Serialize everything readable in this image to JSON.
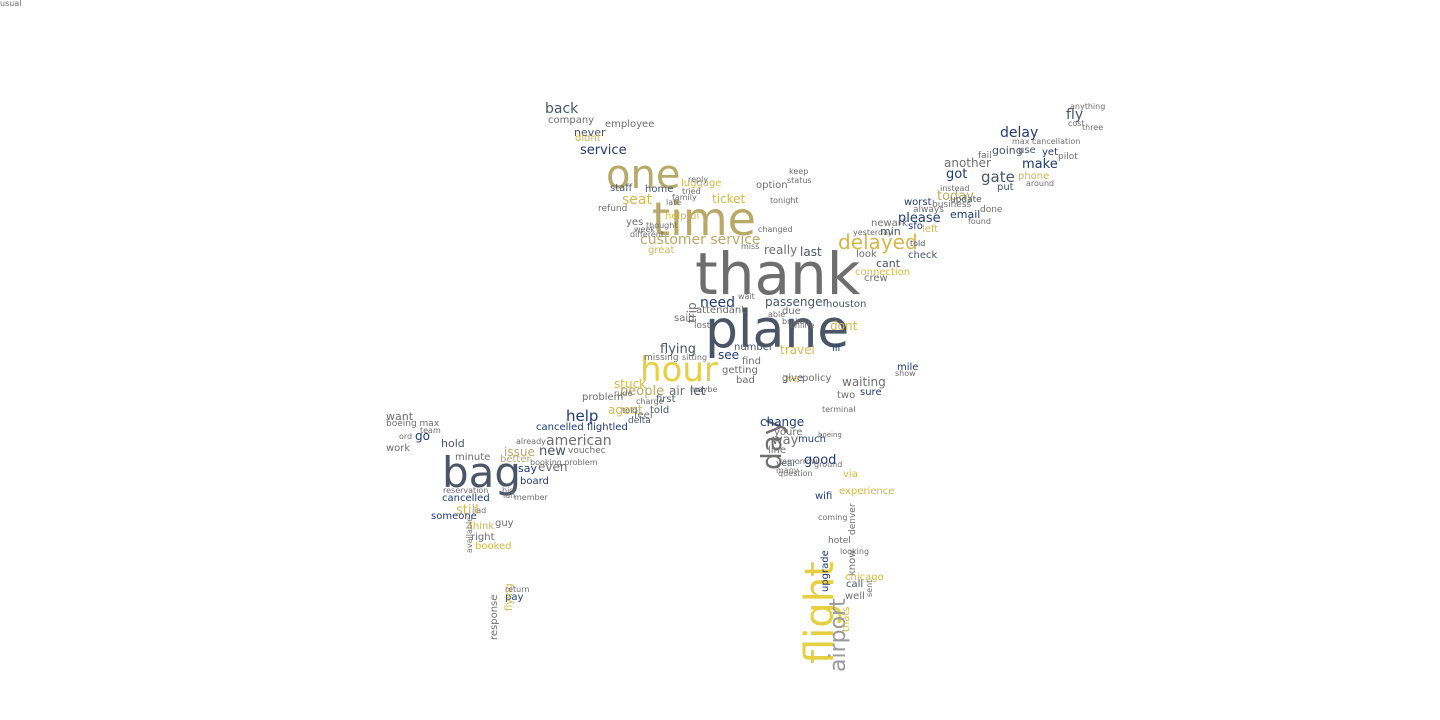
{
  "colors": {
    "navy": "#1f3a78",
    "slate": "#4a5568",
    "gray": "#6e6e6e",
    "lightgray": "#9a9a9a",
    "gold": "#d4b84a",
    "khaki": "#b8a968",
    "yellow": "#e6cf40"
  },
  "words": [
    {
      "text": "thank",
      "color": "gray",
      "vertical": false
    },
    {
      "text": "plane",
      "color": "slate",
      "vertical": false
    },
    {
      "text": "time",
      "color": "khaki",
      "vertical": false
    },
    {
      "text": "one",
      "color": "khaki",
      "vertical": false
    },
    {
      "text": "hour",
      "color": "yellow",
      "vertical": false
    },
    {
      "text": "bag",
      "color": "slate",
      "vertical": false
    },
    {
      "text": "flight",
      "color": "yellow",
      "vertical": true
    },
    {
      "text": "day",
      "color": "gray",
      "vertical": true
    },
    {
      "text": "airport",
      "color": "lightgray",
      "vertical": true
    },
    {
      "text": "delayed",
      "color": "gold",
      "vertical": false
    },
    {
      "text": "customer service",
      "color": "khaki",
      "vertical": false
    },
    {
      "text": "seat",
      "color": "gold",
      "vertical": false
    },
    {
      "text": "ticket",
      "color": "gold",
      "vertical": false
    },
    {
      "text": "service",
      "color": "navy",
      "vertical": false
    },
    {
      "text": "never",
      "color": "slate",
      "vertical": false
    },
    {
      "text": "back",
      "color": "slate",
      "vertical": false
    },
    {
      "text": "delay",
      "color": "navy",
      "vertical": false
    },
    {
      "text": "fly",
      "color": "slate",
      "vertical": false
    },
    {
      "text": "make",
      "color": "navy",
      "vertical": false
    },
    {
      "text": "gate",
      "color": "slate",
      "vertical": false
    },
    {
      "text": "got",
      "color": "navy",
      "vertical": false
    },
    {
      "text": "today",
      "color": "khaki",
      "vertical": false
    },
    {
      "text": "please",
      "color": "navy",
      "vertical": false
    },
    {
      "text": "min",
      "color": "slate",
      "vertical": false
    },
    {
      "text": "really",
      "color": "gray",
      "vertical": false
    },
    {
      "text": "last",
      "color": "slate",
      "vertical": false
    },
    {
      "text": "cant",
      "color": "slate",
      "vertical": false
    },
    {
      "text": "another",
      "color": "gray",
      "vertical": false
    },
    {
      "text": "going",
      "color": "slate",
      "vertical": false
    },
    {
      "text": "need",
      "color": "navy",
      "vertical": false
    },
    {
      "text": "passenger",
      "color": "slate",
      "vertical": false
    },
    {
      "text": "dont",
      "color": "gold",
      "vertical": false
    },
    {
      "text": "flying",
      "color": "slate",
      "vertical": false
    },
    {
      "text": "see",
      "color": "navy",
      "vertical": false
    },
    {
      "text": "people",
      "color": "khaki",
      "vertical": false
    },
    {
      "text": "help",
      "color": "navy",
      "vertical": false
    },
    {
      "text": "agent",
      "color": "gold",
      "vertical": false
    },
    {
      "text": "told",
      "color": "slate",
      "vertical": false
    },
    {
      "text": "cancelled flightled",
      "color": "navy",
      "vertical": false
    },
    {
      "text": "american",
      "color": "gray",
      "vertical": false
    },
    {
      "text": "new",
      "color": "slate",
      "vertical": false
    },
    {
      "text": "issue",
      "color": "khaki",
      "vertical": false
    },
    {
      "text": "even",
      "color": "gray",
      "vertical": false
    },
    {
      "text": "say",
      "color": "navy",
      "vertical": false
    },
    {
      "text": "still",
      "color": "gold",
      "vertical": false
    },
    {
      "text": "board",
      "color": "navy",
      "vertical": false
    },
    {
      "text": "want",
      "color": "gray",
      "vertical": false
    },
    {
      "text": "go",
      "color": "navy",
      "vertical": false
    },
    {
      "text": "hold",
      "color": "slate",
      "vertical": false
    },
    {
      "text": "work",
      "color": "gray",
      "vertical": false
    },
    {
      "text": "minute",
      "color": "gray",
      "vertical": false
    },
    {
      "text": "better",
      "color": "khaki",
      "vertical": false
    },
    {
      "text": "cancelled",
      "color": "navy",
      "vertical": false
    },
    {
      "text": "someone",
      "color": "navy",
      "vertical": false
    },
    {
      "text": "guy",
      "color": "gray",
      "vertical": false
    },
    {
      "text": "think",
      "color": "gold",
      "vertical": false
    },
    {
      "text": "right",
      "color": "gray",
      "vertical": false
    },
    {
      "text": "booked",
      "color": "gold",
      "vertical": false
    },
    {
      "text": "pay",
      "color": "navy",
      "vertical": false
    },
    {
      "text": "problem",
      "color": "gray",
      "vertical": false
    },
    {
      "text": "first",
      "color": "slate",
      "vertical": false
    },
    {
      "text": "change",
      "color": "navy",
      "vertical": false
    },
    {
      "text": "way",
      "color": "gray",
      "vertical": false
    },
    {
      "text": "much",
      "color": "navy",
      "vertical": false
    },
    {
      "text": "good",
      "color": "navy",
      "vertical": false
    },
    {
      "text": "waiting",
      "color": "gray",
      "vertical": false
    },
    {
      "text": "sure",
      "color": "navy",
      "vertical": false
    },
    {
      "text": "mile",
      "color": "navy",
      "vertical": false
    },
    {
      "text": "travel",
      "color": "gold",
      "vertical": false
    },
    {
      "text": "ill",
      "color": "navy",
      "vertical": false
    },
    {
      "text": "number",
      "color": "slate",
      "vertical": false
    },
    {
      "text": "getting",
      "color": "gray",
      "vertical": false
    },
    {
      "text": "give",
      "color": "navy",
      "vertical": false
    },
    {
      "text": "attendant",
      "color": "gray",
      "vertical": false
    },
    {
      "text": "lost",
      "color": "gray",
      "vertical": false
    },
    {
      "text": "staff",
      "color": "slate",
      "vertical": false
    },
    {
      "text": "home",
      "color": "slate",
      "vertical": false
    },
    {
      "text": "luggage",
      "color": "gold",
      "vertical": false
    },
    {
      "text": "great",
      "color": "gold",
      "vertical": false
    },
    {
      "text": "yes",
      "color": "gray",
      "vertical": false
    },
    {
      "text": "email",
      "color": "navy",
      "vertical": false
    },
    {
      "text": "update",
      "color": "slate",
      "vertical": false
    },
    {
      "text": "worst",
      "color": "navy",
      "vertical": false
    },
    {
      "text": "put",
      "color": "slate",
      "vertical": false
    },
    {
      "text": "use",
      "color": "slate",
      "vertical": false
    },
    {
      "text": "yet",
      "color": "navy",
      "vertical": false
    },
    {
      "text": "pilot",
      "color": "gray",
      "vertical": false
    },
    {
      "text": "sfo",
      "color": "navy",
      "vertical": false
    },
    {
      "text": "newark",
      "color": "gray",
      "vertical": false
    },
    {
      "text": "look",
      "color": "gray",
      "vertical": false
    },
    {
      "text": "check",
      "color": "slate",
      "vertical": false
    },
    {
      "text": "crew",
      "color": "gray",
      "vertical": false
    },
    {
      "text": "houston",
      "color": "slate",
      "vertical": false
    },
    {
      "text": "youre",
      "color": "gray",
      "vertical": false
    },
    {
      "text": "line",
      "color": "gray",
      "vertical": false
    },
    {
      "text": "year",
      "color": "slate",
      "vertical": false
    },
    {
      "text": "via",
      "color": "gold",
      "vertical": false
    },
    {
      "text": "experience",
      "color": "gold",
      "vertical": false
    },
    {
      "text": "wifi",
      "color": "navy",
      "vertical": false
    },
    {
      "text": "denver",
      "color": "gray",
      "vertical": true
    },
    {
      "text": "know",
      "color": "gray",
      "vertical": true
    },
    {
      "text": "upgrade",
      "color": "navy",
      "vertical": true
    },
    {
      "text": "hotel",
      "color": "gray",
      "vertical": false
    },
    {
      "text": "chicago",
      "color": "gold",
      "vertical": false
    },
    {
      "text": "call",
      "color": "slate",
      "vertical": false
    },
    {
      "text": "well",
      "color": "gray",
      "vertical": false
    },
    {
      "text": "thats",
      "color": "gold",
      "vertical": true
    },
    {
      "text": "trip",
      "color": "gray",
      "vertical": true
    },
    {
      "text": "said",
      "color": "gray",
      "vertical": false
    },
    {
      "text": "option",
      "color": "gray",
      "vertical": false
    },
    {
      "text": "company",
      "color": "gray",
      "vertical": false
    },
    {
      "text": "didnt",
      "color": "gold",
      "vertical": false
    },
    {
      "text": "employee",
      "color": "gray",
      "vertical": false
    },
    {
      "text": "refund",
      "color": "gray",
      "vertical": false
    },
    {
      "text": "tried",
      "color": "gray",
      "vertical": false
    },
    {
      "text": "changed",
      "color": "gray",
      "vertical": false
    },
    {
      "text": "miss",
      "color": "gray",
      "vertical": false
    },
    {
      "text": "done",
      "color": "gray",
      "vertical": false
    },
    {
      "text": "always",
      "color": "gray",
      "vertical": false
    },
    {
      "text": "business",
      "color": "gray",
      "vertical": false
    },
    {
      "text": "fail",
      "color": "gray",
      "vertical": false
    },
    {
      "text": "anything",
      "color": "gray",
      "vertical": false
    },
    {
      "text": "max cancellation",
      "color": "gray",
      "vertical": false
    },
    {
      "text": "wait",
      "color": "gray",
      "vertical": false
    },
    {
      "text": "due",
      "color": "gray",
      "vertical": false
    },
    {
      "text": "missing",
      "color": "gray",
      "vertical": false
    },
    {
      "text": "air",
      "color": "gray",
      "vertical": false
    },
    {
      "text": "let",
      "color": "slate",
      "vertical": false
    },
    {
      "text": "bad",
      "color": "gray",
      "vertical": false
    },
    {
      "text": "policy",
      "color": "gray",
      "vertical": false
    },
    {
      "text": "show",
      "color": "gray",
      "vertical": false
    },
    {
      "text": "two",
      "color": "gray",
      "vertical": false
    },
    {
      "text": "terminal",
      "color": "gray",
      "vertical": false
    },
    {
      "text": "boeing",
      "color": "gray",
      "vertical": false
    },
    {
      "text": "delta",
      "color": "slate",
      "vertical": false
    },
    {
      "text": "already",
      "color": "gray",
      "vertical": false
    },
    {
      "text": "vouchec",
      "color": "gray",
      "vertical": false
    },
    {
      "text": "booking problem",
      "color": "gray",
      "vertical": false
    },
    {
      "text": "boeing max",
      "color": "gray",
      "vertical": false
    },
    {
      "text": "team",
      "color": "gray",
      "vertical": false
    },
    {
      "text": "ord",
      "color": "gray",
      "vertical": false
    },
    {
      "text": "reservation",
      "color": "gray",
      "vertical": false
    },
    {
      "text": "big",
      "color": "gray",
      "vertical": false
    },
    {
      "text": "iah",
      "color": "gray",
      "vertical": false
    },
    {
      "text": "iad",
      "color": "gray",
      "vertical": false
    },
    {
      "text": "response",
      "color": "gray",
      "vertical": true
    },
    {
      "text": "flying",
      "color": "gold",
      "vertical": true
    },
    {
      "text": "tomorrow",
      "color": "gray",
      "vertical": false
    },
    {
      "text": "many",
      "color": "gray",
      "vertical": false
    },
    {
      "text": "live",
      "color": "gold",
      "vertical": false
    },
    {
      "text": "told",
      "color": "gray",
      "vertical": false
    },
    {
      "text": "charge",
      "color": "gray",
      "vertical": false
    },
    {
      "text": "stuck",
      "color": "gold",
      "vertical": false
    },
    {
      "text": "rude",
      "color": "gray",
      "vertical": false
    },
    {
      "text": "find",
      "color": "gray",
      "vertical": false
    },
    {
      "text": "sitting",
      "color": "gray",
      "vertical": false
    },
    {
      "text": "different",
      "color": "gray",
      "vertical": false
    },
    {
      "text": "week",
      "color": "gray",
      "vertical": false
    },
    {
      "text": "thought",
      "color": "gray",
      "vertical": false
    },
    {
      "text": "helpful",
      "color": "gold",
      "vertical": false
    },
    {
      "text": "tonight",
      "color": "gray",
      "vertical": false
    },
    {
      "text": "late",
      "color": "gray",
      "vertical": false
    },
    {
      "text": "reply",
      "color": "gray",
      "vertical": false
    },
    {
      "text": "keep",
      "color": "gray",
      "vertical": false
    },
    {
      "text": "status",
      "color": "gray",
      "vertical": false
    },
    {
      "text": "phone",
      "color": "gold",
      "vertical": false
    },
    {
      "text": "instead",
      "color": "gray",
      "vertical": false
    },
    {
      "text": "around",
      "color": "gray",
      "vertical": false
    },
    {
      "text": "found",
      "color": "gray",
      "vertical": false
    },
    {
      "text": "yesterday",
      "color": "gray",
      "vertical": false
    },
    {
      "text": "connection",
      "color": "gold",
      "vertical": false
    },
    {
      "text": "left",
      "color": "gold",
      "vertical": false
    },
    {
      "text": "sent",
      "color": "gray",
      "vertical": true
    },
    {
      "text": "looking",
      "color": "gray",
      "vertical": false
    },
    {
      "text": "coming",
      "color": "gray",
      "vertical": false
    },
    {
      "text": "question",
      "color": "gray",
      "vertical": false
    },
    {
      "text": "maybe",
      "color": "gray",
      "vertical": false
    },
    {
      "text": "member",
      "color": "gray",
      "vertical": false
    },
    {
      "text": "able",
      "color": "gray",
      "vertical": false
    },
    {
      "text": "broken",
      "color": "gray",
      "vertical": false
    },
    {
      "text": "family",
      "color": "gray",
      "vertical": false
    },
    {
      "text": "online",
      "color": "gray",
      "vertical": false
    },
    {
      "text": "three",
      "color": "gray",
      "vertical": false
    },
    {
      "text": "return",
      "color": "gray",
      "vertical": false
    },
    {
      "text": "available",
      "color": "gray",
      "vertical": true
    },
    {
      "text": "ground",
      "color": "gray",
      "vertical": false
    },
    {
      "text": "feel",
      "color": "gray",
      "vertical": false
    },
    {
      "text": "told",
      "color": "slate",
      "vertical": false
    },
    {
      "text": "cost",
      "color": "gray",
      "vertical": false
    },
    {
      "text": "usual",
      "color": "gray",
      "vertical": false
    }
  ]
}
